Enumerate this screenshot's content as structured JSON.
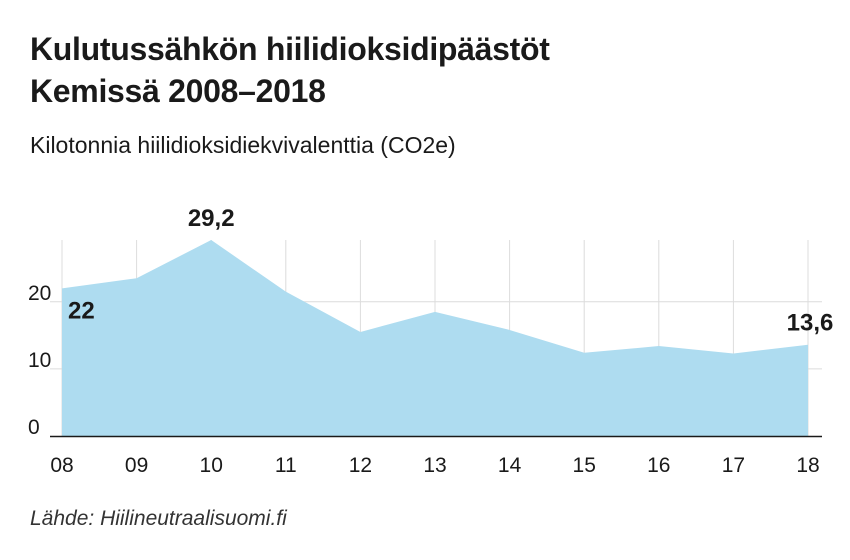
{
  "chart_data": {
    "type": "area",
    "title_lines": [
      "Kulutussähkön hiilidioksidipäästöt",
      "Kemissä 2008–2018"
    ],
    "subtitle": "Kilotonnia hiilidioksidiekvivalenttia (CO2e)",
    "categories": [
      "08",
      "09",
      "10",
      "11",
      "12",
      "13",
      "14",
      "15",
      "16",
      "17",
      "18"
    ],
    "series": [
      {
        "values": [
          22,
          23.5,
          29.2,
          21.5,
          15.5,
          18.5,
          15.8,
          12.4,
          13.4,
          12.3,
          13.6
        ]
      }
    ],
    "data_labels": [
      {
        "index": 0,
        "text": "22"
      },
      {
        "index": 2,
        "text": "29,2"
      },
      {
        "index": 10,
        "text": "13,6"
      }
    ],
    "yticks": [
      "0",
      "10",
      "20"
    ],
    "ytick_values": [
      0,
      10,
      20
    ],
    "ylim": [
      0,
      29.2
    ],
    "grid": true,
    "fill_color": "#aedcf0",
    "grid_color": "#dcdcdc",
    "axis_color": "#1a1a1a"
  },
  "source": "Lähde: Hiilineutraalisuomi.fi"
}
